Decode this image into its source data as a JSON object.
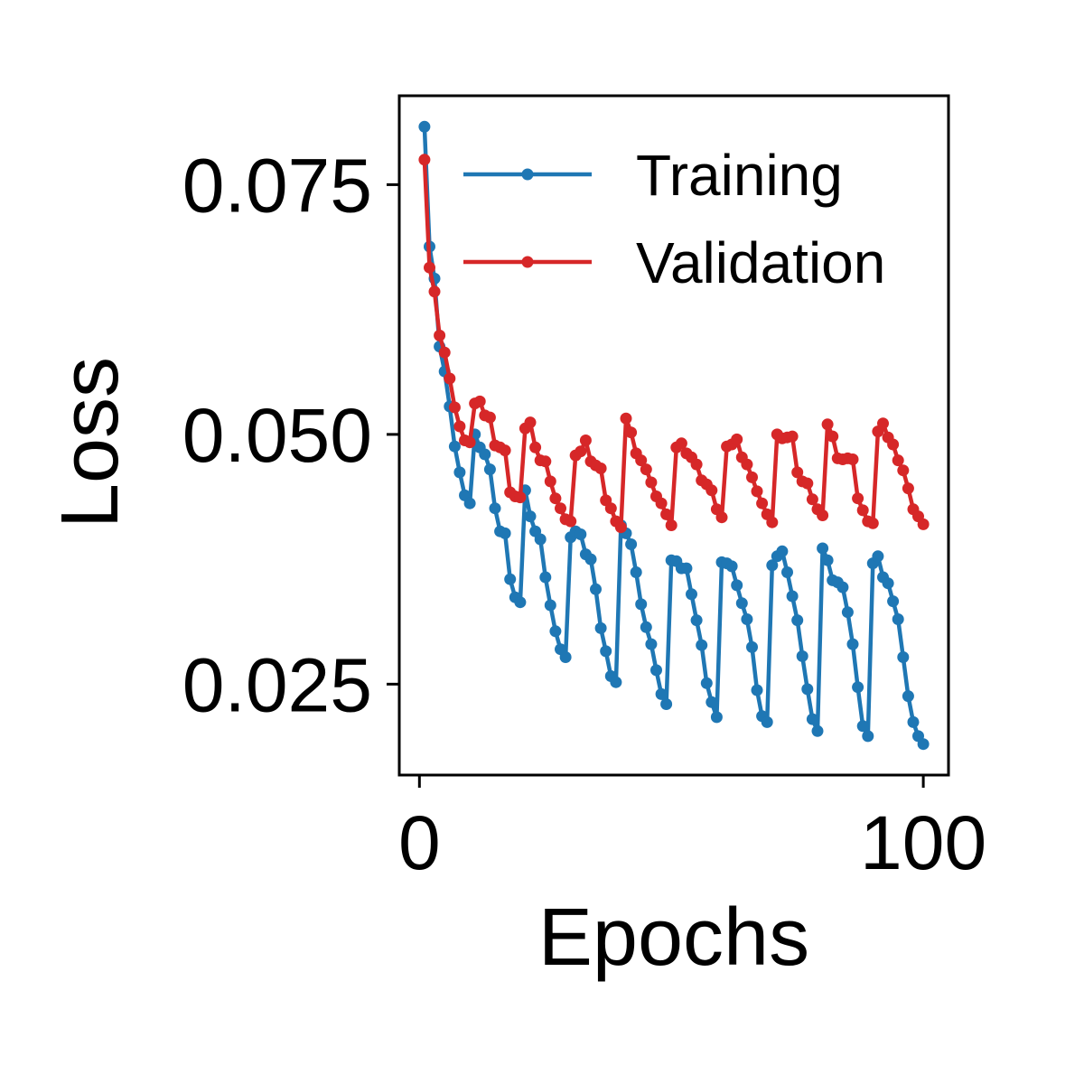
{
  "chart_data": {
    "type": "line",
    "xlabel": "Epochs",
    "ylabel": "Loss",
    "xlim": [
      -4,
      105
    ],
    "ylim": [
      0.0159,
      0.0839
    ],
    "xticks": [
      0,
      100
    ],
    "xtick_labels": [
      "0",
      "100"
    ],
    "yticks": [
      0.025,
      0.05,
      0.075
    ],
    "ytick_labels": [
      "0.025",
      "0.050",
      "0.075"
    ],
    "grid": false,
    "legend": {
      "position": "top-right"
    },
    "series": [
      {
        "name": "Training",
        "color": "#1f77b4",
        "x": [
          1,
          2,
          3,
          4,
          5,
          6,
          7,
          8,
          9,
          10,
          11,
          12,
          13,
          14,
          15,
          16,
          17,
          18,
          19,
          20,
          21,
          22,
          23,
          24,
          25,
          26,
          27,
          28,
          29,
          30,
          31,
          32,
          33,
          34,
          35,
          36,
          37,
          38,
          39,
          40,
          41,
          42,
          43,
          44,
          45,
          46,
          47,
          48,
          49,
          50,
          51,
          52,
          53,
          54,
          55,
          56,
          57,
          58,
          59,
          60,
          61,
          62,
          63,
          64,
          65,
          66,
          67,
          68,
          69,
          70,
          71,
          72,
          73,
          74,
          75,
          76,
          77,
          78,
          79,
          80,
          81,
          82,
          83,
          84,
          85,
          86,
          87,
          88,
          89,
          90,
          91,
          92,
          93,
          94,
          95,
          96,
          97,
          98,
          99,
          100
        ],
        "y": [
          0.0808,
          0.0688,
          0.0656,
          0.0588,
          0.0563,
          0.0528,
          0.0488,
          0.0462,
          0.0439,
          0.0431,
          0.05,
          0.0487,
          0.048,
          0.0465,
          0.0426,
          0.0403,
          0.0401,
          0.0355,
          0.0337,
          0.0332,
          0.0444,
          0.0418,
          0.0403,
          0.0395,
          0.0357,
          0.0329,
          0.0303,
          0.0285,
          0.0277,
          0.0397,
          0.0403,
          0.04,
          0.038,
          0.0375,
          0.0345,
          0.0306,
          0.0283,
          0.0258,
          0.0252,
          0.0409,
          0.0401,
          0.039,
          0.0362,
          0.033,
          0.0307,
          0.029,
          0.0264,
          0.024,
          0.023,
          0.0374,
          0.0373,
          0.0366,
          0.0366,
          0.034,
          0.0314,
          0.0289,
          0.0251,
          0.0232,
          0.0217,
          0.0372,
          0.0371,
          0.0368,
          0.0349,
          0.0331,
          0.0315,
          0.0287,
          0.0244,
          0.0218,
          0.0212,
          0.0369,
          0.0378,
          0.0383,
          0.0362,
          0.0338,
          0.0314,
          0.0278,
          0.0245,
          0.0215,
          0.0203,
          0.0386,
          0.0374,
          0.0354,
          0.0352,
          0.0347,
          0.0322,
          0.029,
          0.0247,
          0.0208,
          0.0198,
          0.0371,
          0.0378,
          0.0357,
          0.0351,
          0.0333,
          0.0315,
          0.0277,
          0.0238,
          0.0212,
          0.0198,
          0.019
        ]
      },
      {
        "name": "Validation",
        "color": "#d62728",
        "x": [
          1,
          2,
          3,
          4,
          5,
          6,
          7,
          8,
          9,
          10,
          11,
          12,
          13,
          14,
          15,
          16,
          17,
          18,
          19,
          20,
          21,
          22,
          23,
          24,
          25,
          26,
          27,
          28,
          29,
          30,
          31,
          32,
          33,
          34,
          35,
          36,
          37,
          38,
          39,
          40,
          41,
          42,
          43,
          44,
          45,
          46,
          47,
          48,
          49,
          50,
          51,
          52,
          53,
          54,
          55,
          56,
          57,
          58,
          59,
          60,
          61,
          62,
          63,
          64,
          65,
          66,
          67,
          68,
          69,
          70,
          71,
          72,
          73,
          74,
          75,
          76,
          77,
          78,
          79,
          80,
          81,
          82,
          83,
          84,
          85,
          86,
          87,
          88,
          89,
          90,
          91,
          92,
          93,
          94,
          95,
          96,
          97,
          98,
          99,
          100
        ],
        "y": [
          0.0775,
          0.0667,
          0.0643,
          0.0599,
          0.0582,
          0.0556,
          0.0527,
          0.0508,
          0.0494,
          0.0492,
          0.0531,
          0.0533,
          0.0519,
          0.0517,
          0.0489,
          0.0487,
          0.0484,
          0.0442,
          0.0438,
          0.0437,
          0.0506,
          0.0512,
          0.0487,
          0.0474,
          0.0473,
          0.0453,
          0.0436,
          0.0426,
          0.0415,
          0.0413,
          0.0479,
          0.0483,
          0.0494,
          0.0473,
          0.0469,
          0.0466,
          0.0434,
          0.0426,
          0.0413,
          0.0407,
          0.0516,
          0.0502,
          0.0481,
          0.0474,
          0.0465,
          0.0452,
          0.0438,
          0.0431,
          0.042,
          0.0409,
          0.0487,
          0.0491,
          0.0481,
          0.0477,
          0.047,
          0.0454,
          0.045,
          0.0444,
          0.0425,
          0.0417,
          0.0488,
          0.049,
          0.0495,
          0.0477,
          0.047,
          0.0457,
          0.0443,
          0.0431,
          0.042,
          0.0412,
          0.05,
          0.0496,
          0.0497,
          0.0498,
          0.0462,
          0.0453,
          0.0451,
          0.0435,
          0.0425,
          0.0419,
          0.051,
          0.0498,
          0.0476,
          0.0475,
          0.0476,
          0.0475,
          0.0436,
          0.0424,
          0.0413,
          0.0411,
          0.0503,
          0.0511,
          0.0497,
          0.049,
          0.0474,
          0.0464,
          0.0446,
          0.0425,
          0.0418,
          0.041
        ]
      }
    ]
  }
}
